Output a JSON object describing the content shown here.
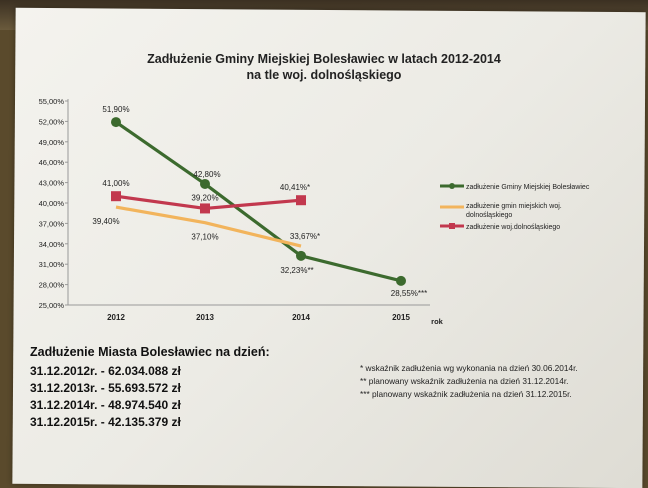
{
  "chart_data": {
    "type": "line",
    "title_line1": "Zadłużenie Gminy Miejskiej Bolesławiec w latach 2012-2014",
    "title_line2": "na tle woj. dolnośląskiego",
    "categories": [
      "2012",
      "2013",
      "2014",
      "2015"
    ],
    "xlabel": "rok",
    "ylim": [
      25,
      55
    ],
    "yticks": [
      "25,00%",
      "28,00%",
      "31,00%",
      "34,00%",
      "37,00%",
      "40,00%",
      "43,00%",
      "46,00%",
      "49,00%",
      "52,00%",
      "55,00%"
    ],
    "ytick_values": [
      25,
      28,
      31,
      34,
      37,
      40,
      43,
      46,
      49,
      52,
      55
    ],
    "series": [
      {
        "name": "zadłużenie Gminy Miejskiej Bolesławiec",
        "color": "#3c6a2e",
        "marker": "circle",
        "values": [
          51.9,
          42.8,
          32.23,
          28.55
        ],
        "labels": [
          "51,90%",
          "42,80%",
          "32,23%**",
          "28,55%***"
        ]
      },
      {
        "name": "zadłużenie gmin miejskich woj. dolnośląskiego",
        "color": "#f2b45c",
        "marker": "none",
        "values": [
          39.4,
          37.1,
          33.67,
          null
        ],
        "labels": [
          "39,40%",
          "37,10%",
          "33,67%*",
          ""
        ]
      },
      {
        "name": "zadłużenie woj.dolnośląskiego",
        "color": "#c2384e",
        "marker": "square",
        "values": [
          41.0,
          39.2,
          40.41,
          null
        ],
        "labels": [
          "41,00%",
          "39,20%",
          "40,41%*",
          ""
        ]
      }
    ],
    "legend_position": "right",
    "grid": false
  },
  "summary": {
    "heading": "Zadłużenie Miasta Bolesławiec na dzień:",
    "rows": [
      "31.12.2012r. - 62.034.088 zł",
      "31.12.2013r. - 55.693.572 zł",
      "31.12.2014r. - 48.974.540 zł",
      "31.12.2015r. - 42.135.379 zł"
    ]
  },
  "notes": [
    "* wskaźnik zadłużenia wg wykonania na dzień 30.06.2014r.",
    "** planowany wskaźnik zadłużenia na dzień 31.12.2014r.",
    "*** planowany wskaźnik zadłużenia na dzień 31.12.2015r."
  ]
}
